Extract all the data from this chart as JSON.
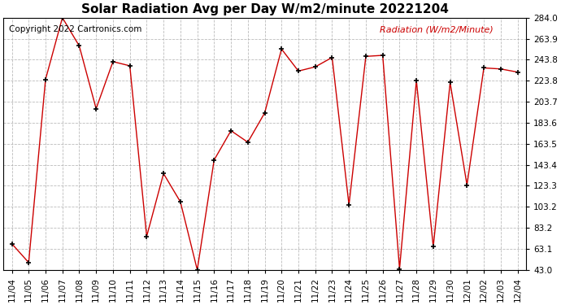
{
  "title": "Solar Radiation Avg per Day W/m2/minute 20221204",
  "copyright_text": "Copyright 2022 Cartronics.com",
  "legend_label": "Radiation (W/m2/Minute)",
  "dates": [
    "11/04",
    "11/05",
    "11/06",
    "11/07",
    "11/08",
    "11/09",
    "11/10",
    "11/11",
    "11/12",
    "11/13",
    "11/14",
    "11/15",
    "11/16",
    "11/17",
    "11/18",
    "11/19",
    "11/20",
    "11/21",
    "11/22",
    "11/23",
    "11/24",
    "11/25",
    "11/26",
    "11/27",
    "11/28",
    "11/29",
    "11/30",
    "12/01",
    "12/02",
    "12/03",
    "12/04"
  ],
  "values": [
    68,
    50,
    225,
    284,
    257,
    197,
    242,
    238,
    75,
    135,
    108,
    43,
    148,
    176,
    165,
    193,
    254,
    233,
    237,
    246,
    105,
    247,
    248,
    44,
    224,
    65,
    222,
    124,
    236,
    235,
    232
  ],
  "line_color": "#cc0000",
  "marker_color": "#000000",
  "grid_color": "#aaaaaa",
  "bg_color": "#ffffff",
  "ylim_min": 43.0,
  "ylim_max": 284.0,
  "yticks": [
    43.0,
    63.1,
    83.2,
    103.2,
    123.3,
    143.4,
    163.5,
    183.6,
    203.7,
    223.8,
    243.8,
    263.9,
    284.0
  ],
  "title_fontsize": 11,
  "label_fontsize": 8,
  "tick_fontsize": 7.5,
  "copyright_fontsize": 7.5
}
